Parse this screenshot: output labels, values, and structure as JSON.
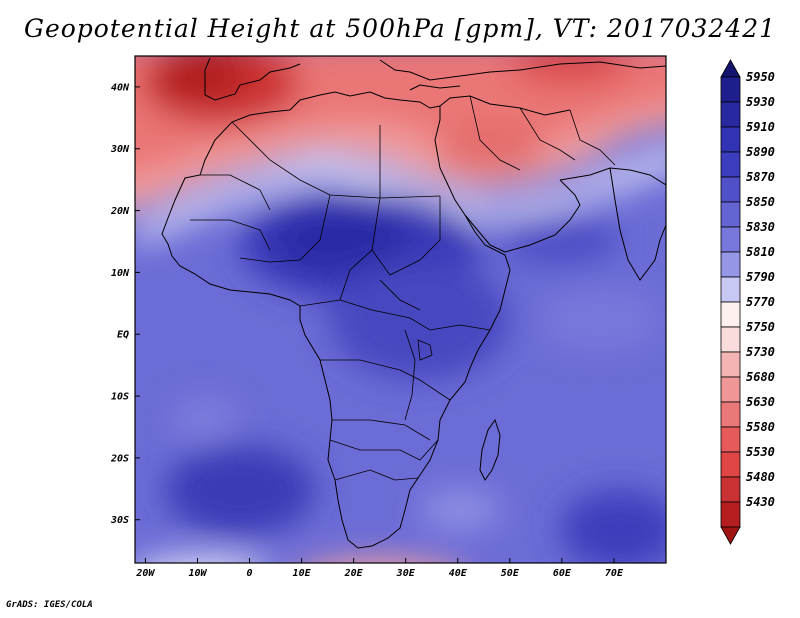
{
  "title": "Geopotential Height at 500hPa [gpm], VT: 2017032421",
  "footer": "GrADS: IGES/COLA",
  "map": {
    "lon_range": [
      -22,
      80
    ],
    "lat_range": [
      -37,
      45
    ],
    "x_ticks": [
      {
        "lon": -20,
        "label": "20W"
      },
      {
        "lon": -10,
        "label": "10W"
      },
      {
        "lon": 0,
        "label": "0"
      },
      {
        "lon": 10,
        "label": "10E"
      },
      {
        "lon": 20,
        "label": "20E"
      },
      {
        "lon": 30,
        "label": "30E"
      },
      {
        "lon": 40,
        "label": "40E"
      },
      {
        "lon": 50,
        "label": "50E"
      },
      {
        "lon": 60,
        "label": "60E"
      },
      {
        "lon": 70,
        "label": "70E"
      }
    ],
    "y_ticks": [
      {
        "lat": 40,
        "label": "40N"
      },
      {
        "lat": 30,
        "label": "30N"
      },
      {
        "lat": 20,
        "label": "20N"
      },
      {
        "lat": 10,
        "label": "10N"
      },
      {
        "lat": 0,
        "label": "EQ"
      },
      {
        "lat": -10,
        "label": "10S"
      },
      {
        "lat": -20,
        "label": "20S"
      },
      {
        "lat": -30,
        "label": "30S"
      }
    ]
  },
  "colorbar": {
    "levels": [
      {
        "label": "5950",
        "color": "#1e1e8c"
      },
      {
        "label": "5930",
        "color": "#2828a0"
      },
      {
        "label": "5910",
        "color": "#3232b4"
      },
      {
        "label": "5890",
        "color": "#3c3cbe"
      },
      {
        "label": "5870",
        "color": "#5050c8"
      },
      {
        "label": "5850",
        "color": "#6464d2"
      },
      {
        "label": "5830",
        "color": "#7878dc"
      },
      {
        "label": "5810",
        "color": "#9696e6"
      },
      {
        "label": "5790",
        "color": "#c8c8f5"
      },
      {
        "label": "5770",
        "color": "#fff0f0"
      },
      {
        "label": "5750",
        "color": "#fadcdc"
      },
      {
        "label": "5730",
        "color": "#f5b4b4"
      },
      {
        "label": "5680",
        "color": "#f09696"
      },
      {
        "label": "5630",
        "color": "#eb7878"
      },
      {
        "label": "5580",
        "color": "#e65a5a"
      },
      {
        "label": "5530",
        "color": "#e14646"
      },
      {
        "label": "5480",
        "color": "#c83232"
      },
      {
        "label": "5430",
        "color": "#b41e1e"
      }
    ],
    "top_arrow_color": "#14146e",
    "bottom_arrow_color": "#a01414"
  }
}
